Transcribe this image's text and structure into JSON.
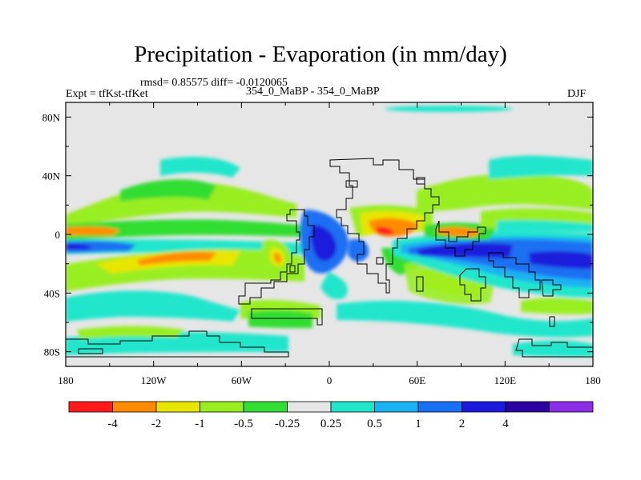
{
  "title": "Precipitation - Evaporation (in mm/day)",
  "stats": "rmsd= 0.85575 diff= -0.0120065",
  "subtitle": "354_0_MaBP - 354_0_MaBP",
  "experiment": "Expt = tfKst-tfKet",
  "season": "DJF",
  "chart_data": {
    "type": "contour-map",
    "variable": "Precipitation - Evaporation",
    "units": "mm/day",
    "lon_range": [
      -180,
      180
    ],
    "lat_range": [
      -90,
      90
    ],
    "x_ticks": [
      {
        "value": -180,
        "label": "180"
      },
      {
        "value": -120,
        "label": "120W"
      },
      {
        "value": -60,
        "label": "60W"
      },
      {
        "value": 0,
        "label": "0"
      },
      {
        "value": 60,
        "label": "60E"
      },
      {
        "value": 120,
        "label": "120E"
      },
      {
        "value": 180,
        "label": "180"
      }
    ],
    "y_ticks": [
      {
        "value": 80,
        "label": "80N"
      },
      {
        "value": 40,
        "label": "40N"
      },
      {
        "value": 0,
        "label": "0"
      },
      {
        "value": -40,
        "label": "40S"
      },
      {
        "value": -80,
        "label": "80S"
      }
    ],
    "colorbar": {
      "colors": [
        "#ff1a1a",
        "#ff8c00",
        "#e8e600",
        "#99ee22",
        "#33dd33",
        "#e6e6e6",
        "#22e6cc",
        "#1ab2f2",
        "#1a70f2",
        "#1a1adc",
        "#2a00a0",
        "#8c2ee6"
      ],
      "labels": [
        "-4",
        "-2",
        "-1",
        "-0.5",
        "-0.25",
        "0.25",
        "0.5",
        "1",
        "2",
        "4"
      ]
    }
  }
}
